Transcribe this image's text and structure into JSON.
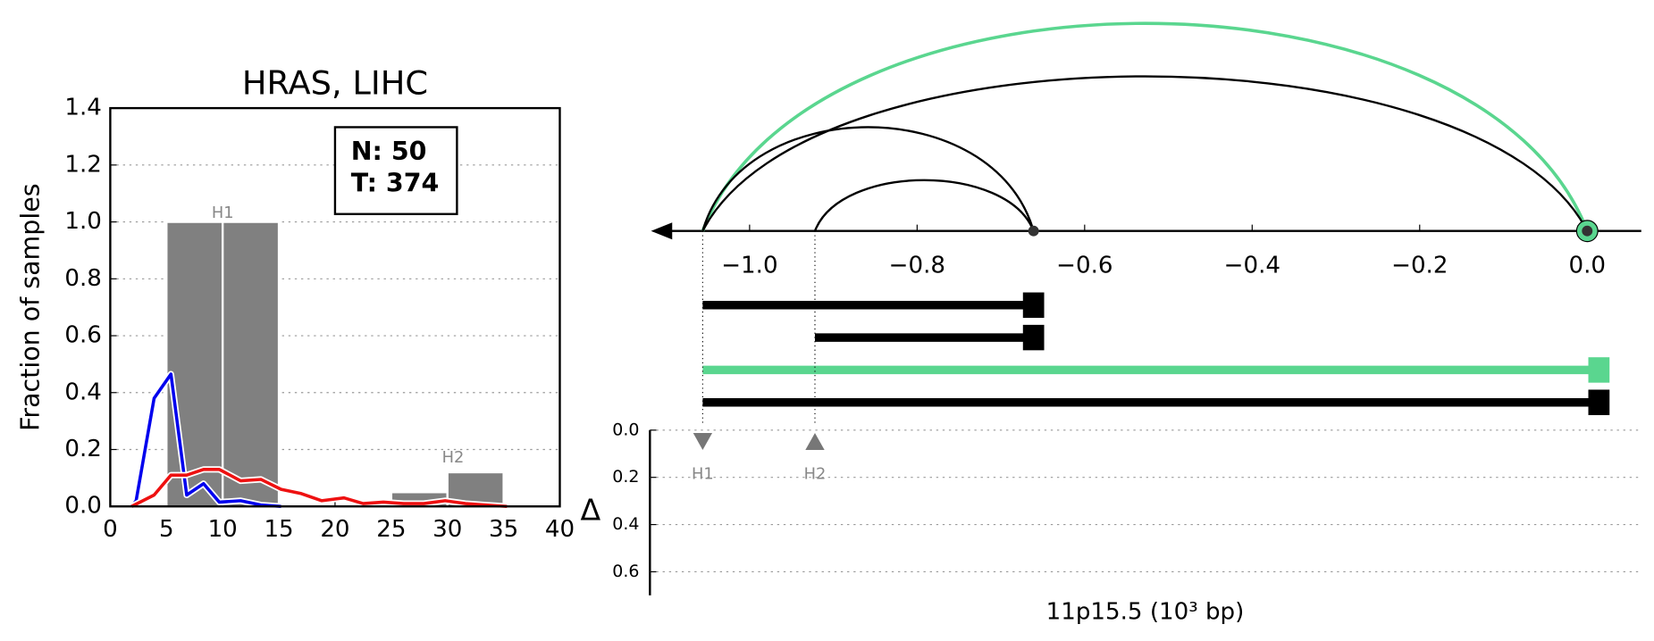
{
  "chart_data": [
    {
      "type": "histogram",
      "title": "HRAS, LIHC",
      "ylabel": "Fraction of samples",
      "bins": [
        0,
        5,
        10,
        15,
        20,
        25,
        30,
        35
      ],
      "counts": [
        0,
        1.0,
        1.0,
        0,
        0,
        0.05,
        0.12
      ],
      "color": "#808080",
      "annotations": [
        {
          "text": "H1",
          "x": 10,
          "y": 1.03
        },
        {
          "text": "H2",
          "x": 30.5,
          "y": 0.17
        }
      ],
      "legend_text": [
        "N: 50",
        "T: 374"
      ],
      "series": [
        {
          "color": "#0000ee",
          "x": [
            1.9,
            2.3,
            3.9,
            5.4,
            6.8,
            8.3,
            9.7,
            11.6,
            13.4,
            15.2
          ],
          "values": [
            0,
            0.02,
            0.38,
            0.465,
            0.04,
            0.08,
            0.015,
            0.02,
            0.005,
            0
          ]
        },
        {
          "color": "#ee1111",
          "x": [
            1.9,
            3.9,
            5.4,
            6.8,
            8.3,
            9.7,
            11.6,
            13.4,
            15.2,
            17.0,
            18.8,
            20.8,
            22.5,
            24.3,
            26.1,
            27.9,
            29.8,
            31.6,
            33.4,
            35.3
          ],
          "values": [
            0,
            0.04,
            0.11,
            0.11,
            0.13,
            0.13,
            0.09,
            0.095,
            0.06,
            0.045,
            0.02,
            0.03,
            0.01,
            0.015,
            0.01,
            0.01,
            0.02,
            0.01,
            0.005,
            0
          ]
        }
      ],
      "xlim": [
        0,
        40
      ],
      "ylim": [
        0,
        1.4
      ],
      "xticks": [
        0,
        5,
        10,
        15,
        20,
        25,
        30,
        35,
        40
      ],
      "yticks": [
        {
          "value": 0,
          "label": "0.0"
        },
        {
          "value": 0.2,
          "label": "0.2"
        },
        {
          "value": 0.4,
          "label": "0.4"
        },
        {
          "value": 0.6,
          "label": "0.6"
        },
        {
          "value": 0.8,
          "label": "0.8"
        },
        {
          "value": 1.0,
          "label": "1.0"
        },
        {
          "value": 1.2,
          "label": "1.2"
        },
        {
          "value": 1.4,
          "label": "1.4"
        }
      ],
      "grid": true
    },
    {
      "type": "arc",
      "xlabel": "11p15.5 (10³ bp)",
      "ylabel": "Δ",
      "xticks": [
        {
          "value": -1.0,
          "label": "−1.0"
        },
        {
          "value": -0.8,
          "label": "−0.8"
        },
        {
          "value": -0.6,
          "label": "−0.6"
        },
        {
          "value": -0.4,
          "label": "−0.4"
        },
        {
          "value": -0.2,
          "label": "−0.2"
        },
        {
          "value": 0,
          "label": "0.0"
        }
      ],
      "arcs": [
        {
          "start": -1.056,
          "end": 0.0,
          "color": "#5ad68f"
        },
        {
          "start": -1.056,
          "end": 0.0,
          "color": "#000000"
        },
        {
          "start": -1.056,
          "end": -0.661,
          "color": "#000000"
        },
        {
          "start": -0.922,
          "end": -0.661,
          "color": "#000000"
        }
      ],
      "transcripts": [
        {
          "start": -1.056,
          "end": -0.661,
          "color": "#000000"
        },
        {
          "start": -0.922,
          "end": -0.661,
          "color": "#000000"
        },
        {
          "start": -1.056,
          "end": 0.014,
          "color": "#5ad68f"
        },
        {
          "start": -1.056,
          "end": 0.014,
          "color": "#000000"
        }
      ],
      "markers": [
        {
          "name": "H1",
          "x": -1.056,
          "delta": 0.03,
          "shape": "down"
        },
        {
          "name": "H2",
          "x": -0.922,
          "delta": 0.03,
          "shape": "up"
        }
      ],
      "ylim": [
        0,
        0.7
      ],
      "yticks": [
        {
          "value": 0,
          "label": "0.0"
        },
        {
          "value": 0.2,
          "label": "0.2"
        },
        {
          "value": 0.4,
          "label": "0.4"
        },
        {
          "value": 0.6,
          "label": "0.6"
        }
      ],
      "grid": true
    }
  ]
}
